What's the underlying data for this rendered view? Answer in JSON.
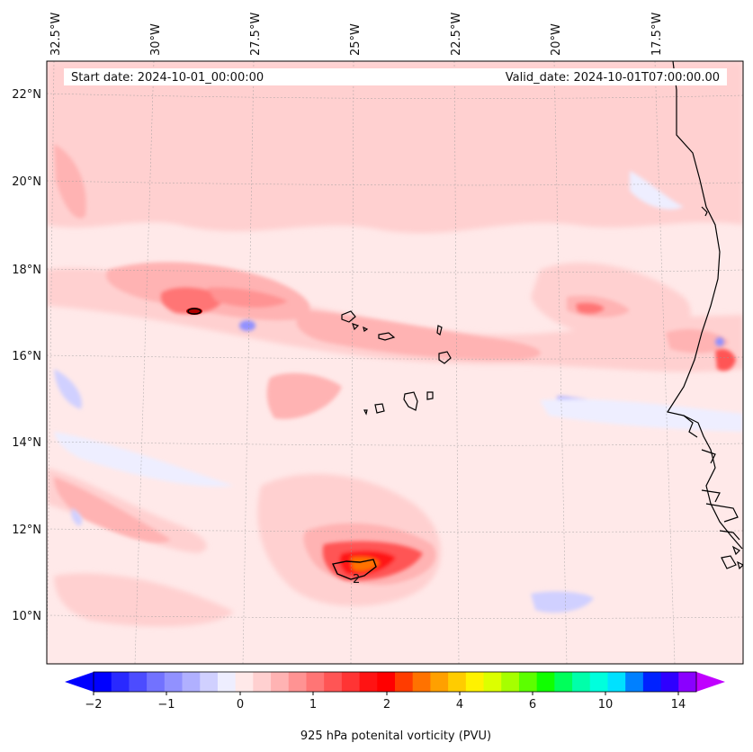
{
  "header": {
    "start_date": "Start date: 2024-10-01_00:00:00",
    "valid_date": "Valid_date: 2024-10-01T07:00:00.00"
  },
  "axes": {
    "lon_labels": [
      "32.5°W",
      "30°W",
      "27.5°W",
      "25°W",
      "22.5°W",
      "20°W",
      "17.5°W"
    ],
    "lat_labels": [
      "22°N",
      "20°N",
      "18°N",
      "16°N",
      "14°N",
      "12°N",
      "10°N"
    ]
  },
  "colorbar": {
    "title": "925 hPa potenital vorticity (PVU)",
    "ticks": [
      "−2",
      "−1",
      "0",
      "1",
      "2",
      "4",
      "6",
      "10",
      "14"
    ],
    "colors": [
      "#0000ff",
      "#2929ff",
      "#4c4cff",
      "#7272ff",
      "#9191ff",
      "#b0b0ff",
      "#d0d0ff",
      "#eeeeff",
      "#ffe9e9",
      "#ffd0d0",
      "#ffb3b3",
      "#ff9393",
      "#ff7575",
      "#ff5555",
      "#ff3434",
      "#ff1313",
      "#ff0000",
      "#ff3c00",
      "#ff7200",
      "#ffa000",
      "#ffcc00",
      "#fff200",
      "#dcff00",
      "#a6ff00",
      "#5cff00",
      "#10ff00",
      "#00ff5a",
      "#00ffaa",
      "#00ffdd",
      "#00e1ff",
      "#0080ff",
      "#0022ff",
      "#2f00ff",
      "#8a00ff"
    ],
    "under_color": "#0000ff",
    "over_color": "#c000ff"
  },
  "contour_labels": [
    "2"
  ],
  "map_colors": {
    "background": "#ffe9e9",
    "light_red": "#ffd0d0",
    "medium_red": "#ffb3b3",
    "strong_red": "#ff7575",
    "light_blue": "#eeeeff",
    "medium_blue": "#b0b0ff",
    "coastline": "#000000"
  }
}
